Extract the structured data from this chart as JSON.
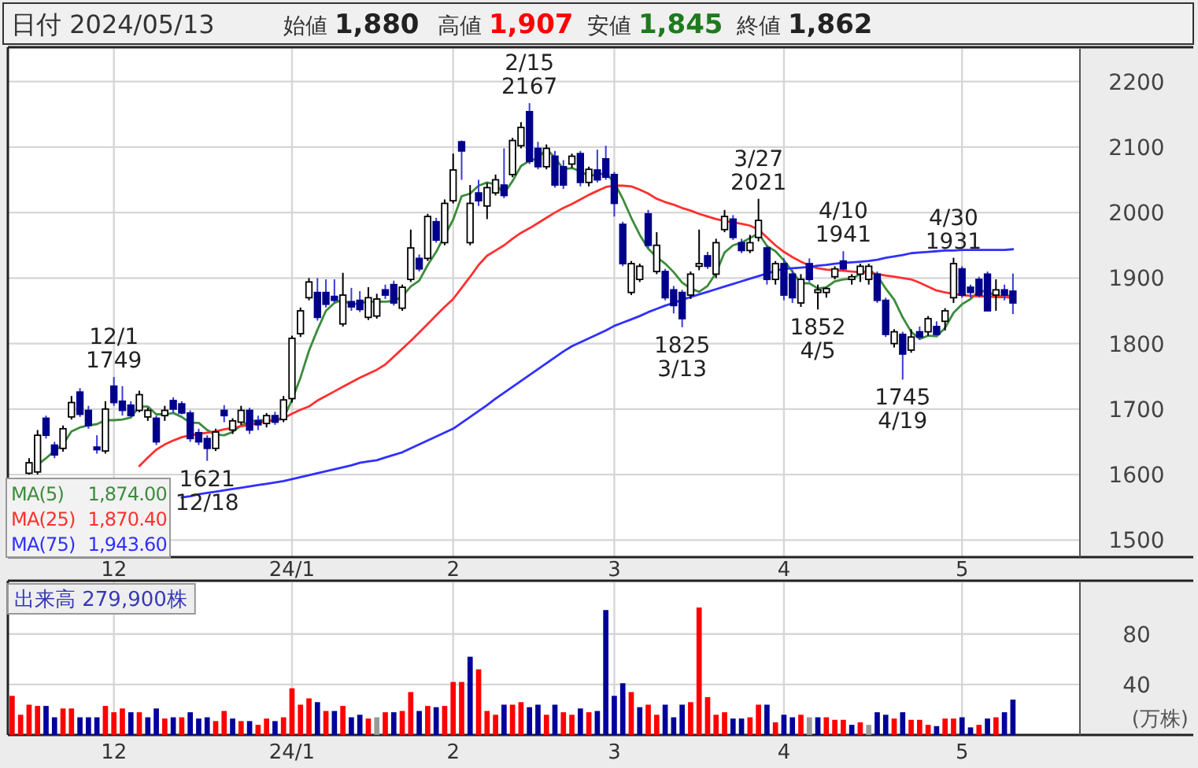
{
  "chart_data": [
    {
      "type": "candlestick",
      "title": "日付 2024/05/13",
      "annotations": [
        "始値 **1,880**",
        "高値 **1,907**",
        "安値 **1,845**",
        "終値 **1,862**",
        {
          "text": "12/1 1749",
          "y": 1749
        },
        {
          "text": "1621 12/18",
          "y": 1621
        },
        {
          "text": "2/15 2167",
          "y": 2167
        },
        {
          "text": "1825 3/13",
          "y": 1825
        },
        {
          "text": "3/27 2021",
          "y": 2021
        },
        {
          "text": "4/10 1941",
          "y": 1941
        },
        {
          "text": "1852 4/5",
          "y": 1852
        },
        {
          "text": "1745 4/19",
          "y": 1745
        },
        {
          "text": "4/30 1931",
          "y": 1931
        }
      ],
      "categories": [
        null,
        null,
        null,
        null,
        null,
        null,
        null,
        null,
        null,
        null,
        null,
        null,
        "12",
        null,
        null,
        null,
        null,
        null,
        null,
        null,
        null,
        null,
        null,
        null,
        null,
        null,
        null,
        null,
        null,
        null,
        null,
        null,
        null,
        "24/1",
        null,
        null,
        null,
        null,
        null,
        null,
        null,
        null,
        null,
        null,
        null,
        null,
        null,
        null,
        null,
        null,
        null,
        null,
        "2",
        null,
        null,
        null,
        null,
        null,
        null,
        null,
        null,
        null,
        null,
        null,
        null,
        null,
        null,
        null,
        null,
        null,
        null,
        "3",
        null,
        null,
        null,
        null,
        null,
        null,
        null,
        null,
        null,
        null,
        null,
        null,
        null,
        null,
        null,
        null,
        null,
        null,
        null,
        "4",
        null,
        null,
        null,
        null,
        null,
        null,
        null,
        null,
        null,
        null,
        null,
        null,
        null,
        null,
        null,
        null,
        null,
        null,
        null,
        null,
        "5",
        null,
        null,
        null,
        null,
        null,
        null
      ],
      "ohlc": [
        null,
        null,
        [
          1602,
          1625,
          1600,
          1618
        ],
        [
          1604,
          1668,
          1600,
          1660
        ],
        [
          1686,
          1690,
          1655,
          1660
        ],
        [
          1645,
          1650,
          1625,
          1630
        ],
        [
          1640,
          1675,
          1635,
          1670
        ],
        [
          1688,
          1720,
          1684,
          1710
        ],
        [
          1726,
          1732,
          1688,
          1692
        ],
        [
          1698,
          1705,
          1670,
          1675
        ],
        [
          1642,
          1660,
          1632,
          1638
        ],
        [
          1636,
          1712,
          1632,
          1700
        ],
        [
          1735,
          1749,
          1705,
          1710
        ],
        [
          1712,
          1735,
          1690,
          1698
        ],
        [
          1706,
          1712,
          1688,
          1690
        ],
        [
          1698,
          1728,
          1695,
          1722
        ],
        [
          1688,
          1702,
          1682,
          1698
        ],
        [
          1686,
          1690,
          1645,
          1650
        ],
        [
          1690,
          1705,
          1682,
          1698
        ],
        [
          1713,
          1718,
          1694,
          1700
        ],
        [
          1708,
          1712,
          1692,
          1694
        ],
        [
          1694,
          1698,
          1650,
          1655
        ],
        [
          1664,
          1670,
          1645,
          1650
        ],
        [
          1655,
          1660,
          1621,
          1640
        ],
        [
          1640,
          1670,
          1636,
          1665
        ],
        [
          1698,
          1706,
          1680,
          1690
        ],
        [
          1668,
          1686,
          1662,
          1682
        ],
        [
          1680,
          1705,
          1676,
          1698
        ],
        [
          1698,
          1702,
          1662,
          1668
        ],
        [
          1682,
          1690,
          1668,
          1676
        ],
        [
          1678,
          1694,
          1672,
          1690
        ],
        [
          1690,
          1696,
          1676,
          1680
        ],
        [
          1684,
          1720,
          1680,
          1714
        ],
        [
          1716,
          1812,
          1710,
          1808
        ],
        [
          1815,
          1855,
          1810,
          1850
        ],
        [
          1870,
          1900,
          1866,
          1894
        ],
        [
          1878,
          1900,
          1835,
          1840
        ],
        [
          1878,
          1898,
          1855,
          1860
        ],
        [
          1872,
          1898,
          1862,
          1866
        ],
        [
          1830,
          1908,
          1826,
          1874
        ],
        [
          1864,
          1885,
          1850,
          1856
        ],
        [
          1866,
          1880,
          1848,
          1852
        ],
        [
          1840,
          1886,
          1836,
          1870
        ],
        [
          1842,
          1876,
          1838,
          1868
        ],
        [
          1882,
          1890,
          1868,
          1874
        ],
        [
          1890,
          1896,
          1858,
          1862
        ],
        [
          1854,
          1890,
          1850,
          1886
        ],
        [
          1898,
          1974,
          1894,
          1946
        ],
        [
          1930,
          1936,
          1910,
          1914
        ],
        [
          1930,
          1998,
          1926,
          1994
        ],
        [
          1986,
          1992,
          1954,
          1958
        ],
        [
          1954,
          2020,
          1950,
          2014
        ],
        [
          2018,
          2090,
          2014,
          2065
        ],
        [
          2108,
          2110,
          2050,
          2094
        ],
        [
          1954,
          2042,
          1950,
          2014
        ],
        [
          2030,
          2050,
          2010,
          2018
        ],
        [
          2010,
          2045,
          1990,
          2038
        ],
        [
          2030,
          2058,
          2026,
          2050
        ],
        [
          2042,
          2098,
          2022,
          2026
        ],
        [
          2058,
          2114,
          2054,
          2110
        ],
        [
          2102,
          2138,
          2098,
          2130
        ],
        [
          2154,
          2167,
          2074,
          2078
        ],
        [
          2098,
          2108,
          2066,
          2070
        ],
        [
          2070,
          2104,
          2066,
          2098
        ],
        [
          2086,
          2094,
          2038,
          2042
        ],
        [
          2070,
          2080,
          2036,
          2042
        ],
        [
          2074,
          2090,
          2068,
          2086
        ],
        [
          2090,
          2094,
          2040,
          2046
        ],
        [
          2046,
          2070,
          2040,
          2066
        ],
        [
          2065,
          2096,
          2046,
          2050
        ],
        [
          2082,
          2102,
          2050,
          2054
        ],
        [
          2058,
          2062,
          1994,
          2014
        ],
        [
          1982,
          1986,
          1918,
          1922
        ],
        [
          1878,
          1926,
          1874,
          1922
        ],
        [
          1898,
          1922,
          1894,
          1918
        ],
        [
          1998,
          2004,
          1946,
          1950
        ],
        [
          1910,
          1970,
          1906,
          1950
        ],
        [
          1910,
          1914,
          1866,
          1870
        ],
        [
          1882,
          1888,
          1846,
          1858
        ],
        [
          1878,
          1882,
          1825,
          1838
        ],
        [
          1874,
          1910,
          1868,
          1906
        ],
        [
          1918,
          1974,
          1912,
          1922
        ],
        [
          1934,
          1940,
          1914,
          1918
        ],
        [
          1906,
          1960,
          1900,
          1954
        ],
        [
          1974,
          2004,
          1970,
          1994
        ],
        [
          1990,
          1996,
          1958,
          1962
        ],
        [
          1954,
          1960,
          1938,
          1942
        ],
        [
          1942,
          1966,
          1938,
          1954
        ],
        [
          1962,
          2021,
          1956,
          1988
        ],
        [
          1946,
          1950,
          1890,
          1898
        ],
        [
          1898,
          1926,
          1890,
          1922
        ],
        [
          1922,
          1930,
          1866,
          1874
        ],
        [
          1906,
          1912,
          1862,
          1870
        ],
        [
          1862,
          1906,
          1856,
          1898
        ],
        [
          1922,
          1930,
          1894,
          1898
        ],
        [
          1878,
          1890,
          1852,
          1882
        ],
        [
          1878,
          1886,
          1870,
          1884
        ],
        [
          1902,
          1918,
          1898,
          1914
        ],
        [
          1926,
          1941,
          1912,
          1914
        ],
        [
          1898,
          1906,
          1890,
          1902
        ],
        [
          1906,
          1922,
          1894,
          1918
        ],
        [
          1898,
          1922,
          1890,
          1918
        ],
        [
          1906,
          1910,
          1862,
          1866
        ],
        [
          1866,
          1870,
          1810,
          1814
        ],
        [
          1800,
          1822,
          1794,
          1818
        ],
        [
          1814,
          1818,
          1745,
          1784
        ],
        [
          1790,
          1822,
          1786,
          1810
        ],
        [
          1818,
          1826,
          1806,
          1810
        ],
        [
          1818,
          1842,
          1812,
          1838
        ],
        [
          1826,
          1834,
          1812,
          1814
        ],
        [
          1834,
          1854,
          1820,
          1850
        ],
        [
          1870,
          1931,
          1862,
          1922
        ],
        [
          1914,
          1918,
          1870,
          1874
        ],
        [
          1886,
          1890,
          1870,
          1878
        ],
        [
          1898,
          1902,
          1870,
          1874
        ],
        [
          1906,
          1910,
          1850,
          1850
        ],
        [
          1874,
          1898,
          1850,
          1882
        ],
        [
          1882,
          1890,
          1866,
          1874
        ],
        [
          1880,
          1907,
          1845,
          1862
        ]
      ],
      "series": [
        {
          "type": "line",
          "name": "MA(5) 1,874.00",
          "color": "#3c8c3c",
          "values": [
            null,
            null,
            null,
            1615,
            1625,
            1636,
            1646,
            1666,
            1672,
            1675,
            1677,
            1683,
            1683,
            1684,
            1687,
            1704,
            1704,
            1692,
            1692,
            1694,
            1688,
            1679,
            1679,
            1668,
            1661,
            1660,
            1665,
            1675,
            1681,
            1683,
            1683,
            1682,
            1686,
            1714,
            1748,
            1789,
            1821,
            1850,
            1862,
            1867,
            1859,
            1862,
            1864,
            1864,
            1864,
            1865,
            1872,
            1887,
            1896,
            1920,
            1940,
            1965,
            1989,
            2025,
            2029,
            2041,
            2046,
            2043,
            2029,
            2048,
            2071,
            2079,
            2083,
            2097,
            2084,
            2066,
            2068,
            2063,
            2056,
            2058,
            2060,
            2046,
            2021,
            1992,
            1966,
            1945,
            1932,
            1922,
            1909,
            1893,
            1884,
            1879,
            1888,
            1908,
            1939,
            1950,
            1954,
            1961,
            1968,
            1949,
            1941,
            1927,
            1910,
            1892,
            1892,
            1884,
            1886,
            1895,
            1898,
            1899,
            1906,
            1913,
            1904,
            1884,
            1867,
            1840,
            1818,
            1807,
            1812,
            1811,
            1824,
            1847,
            1860,
            1868,
            1880,
            1880,
            1872,
            1872,
            1874
          ]
        },
        {
          "type": "line",
          "name": "MA(25) 1,870.40",
          "color": "#ff3030",
          "values": [
            null,
            null,
            null,
            null,
            null,
            null,
            null,
            null,
            null,
            null,
            null,
            null,
            null,
            null,
            null,
            1613,
            1626,
            1638,
            1646,
            1652,
            1657,
            1660,
            1662,
            1664,
            1666,
            1669,
            1671,
            1674,
            1676,
            1679,
            1681,
            1684,
            1686,
            1693,
            1699,
            1704,
            1713,
            1720,
            1727,
            1734,
            1741,
            1748,
            1754,
            1760,
            1768,
            1780,
            1792,
            1804,
            1817,
            1830,
            1843,
            1856,
            1868,
            1885,
            1902,
            1920,
            1934,
            1942,
            1950,
            1960,
            1969,
            1976,
            1984,
            1992,
            2000,
            2007,
            2013,
            2020,
            2027,
            2033,
            2039,
            2041,
            2041,
            2040,
            2035,
            2029,
            2021,
            2016,
            2012,
            2007,
            2003,
            1998,
            1994,
            1990,
            1987,
            1985,
            1983,
            1980,
            1974,
            1962,
            1950,
            1940,
            1932,
            1925,
            1919,
            1915,
            1913,
            1912,
            1911,
            1910,
            1909,
            1908,
            1906,
            1904,
            1902,
            1900,
            1898,
            1893,
            1887,
            1881,
            1878,
            1876,
            1874,
            1873,
            1872,
            1872,
            1871,
            1871,
            1870
          ]
        },
        {
          "type": "line",
          "name": "MA(75) 1,943.60",
          "color": "#3030ff",
          "values": [
            null,
            null,
            null,
            null,
            null,
            null,
            null,
            null,
            null,
            null,
            null,
            null,
            null,
            null,
            null,
            null,
            null,
            null,
            null,
            null,
            1565,
            1567,
            1570,
            1572,
            1574,
            1576,
            1578,
            1580,
            1582,
            1584,
            1586,
            1588,
            1590,
            1593,
            1596,
            1599,
            1602,
            1605,
            1608,
            1611,
            1614,
            1618,
            1620,
            1622,
            1626,
            1630,
            1634,
            1640,
            1646,
            1652,
            1658,
            1664,
            1670,
            1679,
            1688,
            1697,
            1706,
            1716,
            1725,
            1734,
            1743,
            1752,
            1761,
            1770,
            1779,
            1788,
            1796,
            1802,
            1808,
            1814,
            1820,
            1827,
            1832,
            1837,
            1842,
            1848,
            1853,
            1858,
            1862,
            1867,
            1871,
            1875,
            1879,
            1883,
            1887,
            1891,
            1895,
            1899,
            1903,
            1907,
            1911,
            1914,
            1915,
            1916,
            1917,
            1919,
            1920,
            1922,
            1923,
            1924,
            1925,
            1926,
            1928,
            1931,
            1933,
            1935,
            1938,
            1939,
            1940,
            1941,
            1942,
            1942,
            1943,
            1943,
            1943,
            1943,
            1943,
            1943,
            1944
          ]
        }
      ],
      "ylim": [
        1474,
        2250
      ],
      "yticks": [
        1500,
        1600,
        1700,
        1800,
        1900,
        2000,
        2100,
        2200
      ],
      "grid": true,
      "legend": "bottom left"
    },
    {
      "type": "bar",
      "title": "出来高 279,900株",
      "ylabel": "(万株)",
      "categories": [
        null,
        null,
        null,
        null,
        null,
        null,
        null,
        null,
        null,
        null,
        null,
        null,
        "12",
        null,
        null,
        null,
        null,
        null,
        null,
        null,
        null,
        null,
        null,
        null,
        null,
        null,
        null,
        null,
        null,
        null,
        null,
        null,
        null,
        "24/1",
        null,
        null,
        null,
        null,
        null,
        null,
        null,
        null,
        null,
        null,
        null,
        null,
        null,
        null,
        null,
        null,
        null,
        null,
        "2",
        null,
        null,
        null,
        null,
        null,
        null,
        null,
        null,
        null,
        null,
        null,
        null,
        null,
        null,
        null,
        null,
        null,
        null,
        "3",
        null,
        null,
        null,
        null,
        null,
        null,
        null,
        null,
        null,
        null,
        null,
        null,
        null,
        null,
        null,
        null,
        null,
        null,
        null,
        "4",
        null,
        null,
        null,
        null,
        null,
        null,
        null,
        null,
        null,
        null,
        null,
        null,
        null,
        null,
        null,
        null,
        null,
        null,
        null,
        null,
        "5",
        null,
        null,
        null,
        null,
        null,
        null
      ],
      "values": [
        31,
        16,
        24,
        23,
        23,
        14,
        21,
        21,
        14,
        14,
        14,
        23,
        18,
        21,
        18,
        18,
        14,
        21,
        13,
        14,
        14,
        18,
        13,
        14,
        11,
        19,
        13,
        11,
        11,
        8,
        13,
        11,
        14,
        37,
        24,
        29,
        26,
        19,
        19,
        23,
        14,
        16,
        13,
        14,
        18,
        18,
        19,
        34,
        19,
        23,
        22,
        23,
        42,
        42,
        62,
        52,
        19,
        16,
        24,
        24,
        26,
        22,
        24,
        16,
        24,
        18,
        16,
        21,
        18,
        19,
        99,
        31,
        41,
        34,
        22,
        24,
        16,
        24,
        14,
        24,
        26,
        101,
        30,
        16,
        18,
        13,
        13,
        14,
        24,
        24,
        10,
        16,
        14,
        16,
        14,
        14,
        14,
        12,
        12,
        8,
        10,
        8,
        18,
        16,
        13,
        18,
        12,
        12,
        8,
        7,
        13,
        13,
        14,
        6,
        8,
        13,
        14,
        18,
        28
      ],
      "colors": [
        "#ff0000",
        "#ff0000",
        "#ff0000",
        "#ff0000",
        "#00009c",
        "#00009c",
        "#ff0000",
        "#ff0000",
        "#00009c",
        "#00009c",
        "#00009c",
        "#ff0000",
        "#ff0000",
        "#ff0000",
        "#00009c",
        "#ff0000",
        "#00009c",
        "#00009c",
        "#ff0000",
        "#00009c",
        "#ff0000",
        "#00009c",
        "#00009c",
        "#00009c",
        "#ff0000",
        "#ff0000",
        "#00009c",
        "#ff0000",
        "#00009c",
        "#ff0000",
        "#ff0000",
        "#00009c",
        "#ff0000",
        "#ff0000",
        "#ff0000",
        "#ff0000",
        "#00009c",
        "#ff0000",
        "#00009c",
        "#ff0000",
        "#00009c",
        "#00009c",
        "#ff0000",
        "#999999",
        "#ff0000",
        "#00009c",
        "#ff0000",
        "#ff0000",
        "#00009c",
        "#ff0000",
        "#00009c",
        "#ff0000",
        "#ff0000",
        "#ff0000",
        "#00009c",
        "#ff0000",
        "#ff0000",
        "#ff0000",
        "#00009c",
        "#ff0000",
        "#ff0000",
        "#00009c",
        "#00009c",
        "#ff0000",
        "#00009c",
        "#ff0000",
        "#ff0000",
        "#00009c",
        "#ff0000",
        "#00009c",
        "#00009c",
        "#00009c",
        "#00009c",
        "#ff0000",
        "#00009c",
        "#ff0000",
        "#ff0000",
        "#00009c",
        "#00009c",
        "#00009c",
        "#ff0000",
        "#ff0000",
        "#ff0000",
        "#ff0000",
        "#ff0000",
        "#00009c",
        "#00009c",
        "#ff0000",
        "#ff0000",
        "#00009c",
        "#ff0000",
        "#00009c",
        "#00009c",
        "#ff0000",
        "#999999",
        "#00009c",
        "#ff0000",
        "#ff0000",
        "#ff0000",
        "#00009c",
        "#ff0000",
        "#999999",
        "#00009c",
        "#00009c",
        "#ff0000",
        "#00009c",
        "#ff0000",
        "#ff0000",
        "#ff0000",
        "#00009c",
        "#ff0000",
        "#ff0000",
        "#00009c",
        "#00009c",
        "#ff0000",
        "#00009c",
        "#ff0000",
        "#00009c",
        "#00009c"
      ],
      "ylim": [
        0,
        121
      ],
      "yticks": [
        40,
        80
      ],
      "grid": true
    }
  ]
}
